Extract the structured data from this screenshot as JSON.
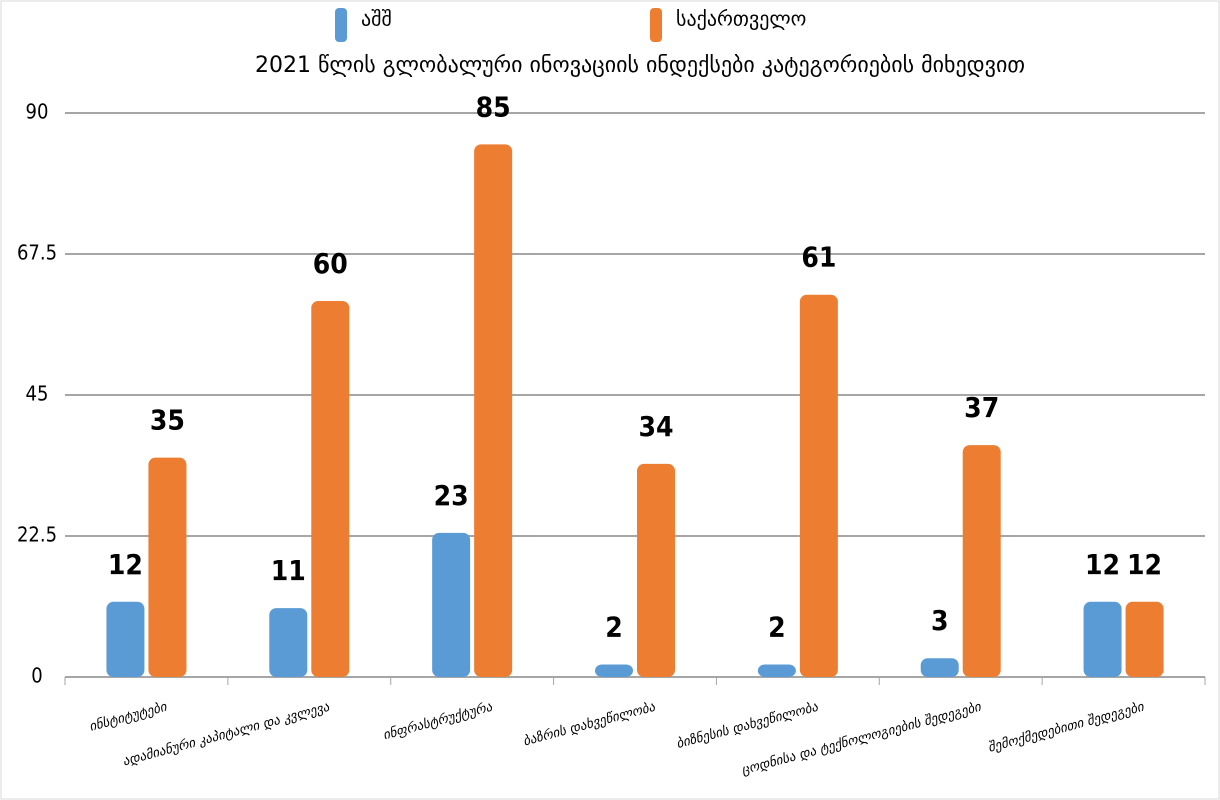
{
  "chart_data": {
    "type": "bar",
    "title": "2021 წლის გლობალური ინოვაციის ინდექსები კატეგორიების მიხედვით",
    "categories": [
      "ინსტიტუტები",
      "ადამიანური კაპიტალი და კვლევა",
      "ინფრასტრუქტურა",
      "ბაზრის დახვეწილობა",
      "ბიზნესის დახვეწილობა",
      "ცოდნისა და ტექნოლოგიების შედეგები",
      "შემოქმედებითი შედეგები"
    ],
    "series": [
      {
        "name": "აშშ",
        "color": "#5b9bd5",
        "values": [
          12,
          11,
          23,
          2,
          2,
          3,
          12
        ]
      },
      {
        "name": "საქართველო",
        "color": "#ed7d31",
        "values": [
          35,
          60,
          85,
          34,
          61,
          37,
          12
        ]
      }
    ],
    "ylim": [
      0,
      90
    ],
    "yticks": [
      0,
      22.5,
      45,
      67.5,
      90
    ],
    "grid": true
  }
}
